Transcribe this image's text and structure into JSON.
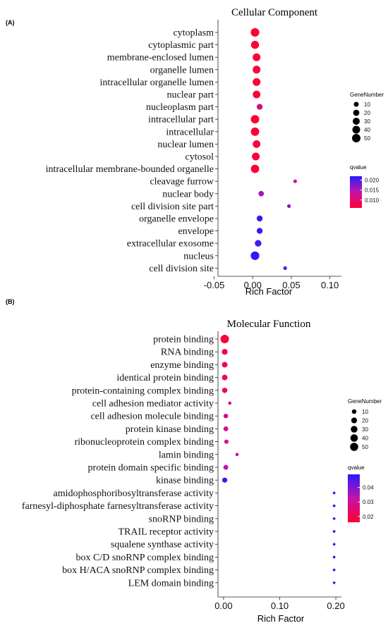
{
  "panels": [
    {
      "label": "(A)",
      "title": "Cellular Component"
    },
    {
      "label": "(B)",
      "title": "Molecular Function"
    }
  ],
  "chart_data": [
    {
      "type": "scatter",
      "title": "Cellular Component",
      "panel_label": "(A)",
      "xlabel": "Rich Factor",
      "ylabel": "",
      "xlim": [
        -0.045,
        0.115
      ],
      "xticks": [
        -0.05,
        0.0,
        0.05,
        0.1
      ],
      "xtick_labels": [
        "-0.05",
        "0.00",
        "0.05",
        "0.10"
      ],
      "categories": [
        "cytoplasm",
        "cytoplasmic part",
        "membrane-enclosed lumen",
        "organelle lumen",
        "intracellular organelle lumen",
        "nuclear part",
        "nucleoplasm part",
        "intracellular part",
        "intracellular",
        "nuclear lumen",
        "cytosol",
        "intracellular membrane-bounded organelle",
        "cleavage furrow",
        "nuclear body",
        "cell division site part",
        "organelle envelope",
        "envelope",
        "extracellular exosome",
        "nucleus",
        "cell division site"
      ],
      "x": [
        0.003,
        0.003,
        0.005,
        0.005,
        0.005,
        0.005,
        0.009,
        0.003,
        0.003,
        0.005,
        0.004,
        0.003,
        0.055,
        0.011,
        0.047,
        0.009,
        0.009,
        0.007,
        0.003,
        0.042
      ],
      "gene_number": [
        52,
        44,
        40,
        40,
        40,
        38,
        18,
        50,
        50,
        38,
        40,
        48,
        3,
        14,
        3,
        18,
        18,
        25,
        52,
        3
      ],
      "qvalue": [
        0.0058,
        0.006,
        0.0063,
        0.0063,
        0.0063,
        0.0068,
        0.0115,
        0.0062,
        0.0062,
        0.007,
        0.0066,
        0.0064,
        0.0135,
        0.0158,
        0.0172,
        0.0212,
        0.0212,
        0.0207,
        0.0218,
        0.0205
      ],
      "legend": {
        "size_title": "GeneNumber",
        "size_values": [
          10,
          20,
          30,
          40,
          50
        ],
        "size_labels": [
          "10",
          "20",
          "30",
          "40",
          "50"
        ],
        "color_title": "qvalue",
        "color_ticks": [
          0.02,
          0.015,
          0.01
        ],
        "color_tick_labels": [
          "0.020",
          "0.015",
          "0.010"
        ],
        "color_range": [
          0.006,
          0.022
        ],
        "color_low": "#ff0033",
        "color_high": "#2a1bff"
      },
      "grid": false,
      "legend_position": "right"
    },
    {
      "type": "scatter",
      "title": "Molecular Function",
      "panel_label": "(B)",
      "xlabel": "Rich Factor",
      "ylabel": "",
      "xlim": [
        -0.01,
        0.21
      ],
      "xticks": [
        0.0,
        0.1,
        0.2
      ],
      "xtick_labels": [
        "0.00",
        "0.10",
        "0.20"
      ],
      "categories": [
        "protein binding",
        "RNA binding",
        "enzyme binding",
        "identical protein binding",
        "protein-containing complex binding",
        "cell adhesion mediator activity",
        "cell adhesion molecule binding",
        "protein kinase binding",
        "ribonucleoprotein complex binding",
        "lamin binding",
        "protein domain specific binding",
        "kinase binding",
        "amidophosphoribosyltransferase activity",
        "farnesyl-diphosphate farnesyltransferase activity",
        "snoRNP binding",
        "TRAIL receptor activity",
        "squalene synthase activity",
        "box C/D snoRNP complex binding",
        "box H/ACA snoRNP complex binding",
        "LEM domain binding"
      ],
      "x": [
        0.002,
        0.002,
        0.002,
        0.002,
        0.002,
        0.011,
        0.004,
        0.004,
        0.005,
        0.024,
        0.004,
        0.002,
        0.197,
        0.197,
        0.197,
        0.197,
        0.197,
        0.197,
        0.197,
        0.197
      ],
      "gene_number": [
        55,
        20,
        18,
        18,
        15,
        3,
        10,
        12,
        8,
        3,
        12,
        14,
        1,
        1,
        1,
        1,
        1,
        1,
        1,
        1
      ],
      "qvalue": [
        0.0175,
        0.019,
        0.0195,
        0.02,
        0.0205,
        0.025,
        0.028,
        0.029,
        0.03,
        0.0305,
        0.031,
        0.047,
        0.048,
        0.048,
        0.048,
        0.048,
        0.048,
        0.048,
        0.048,
        0.048
      ],
      "legend": {
        "size_title": "GeneNumber",
        "size_values": [
          10,
          20,
          30,
          40,
          50
        ],
        "size_labels": [
          "10",
          "20",
          "30",
          "40",
          "50"
        ],
        "color_title": "qvalue",
        "color_ticks": [
          0.04,
          0.03,
          0.02
        ],
        "color_tick_labels": [
          "0.04",
          "0.03",
          "0.02"
        ],
        "color_range": [
          0.016,
          0.049
        ],
        "color_low": "#ff0033",
        "color_high": "#2a1bff"
      },
      "grid": false,
      "legend_position": "right"
    }
  ]
}
